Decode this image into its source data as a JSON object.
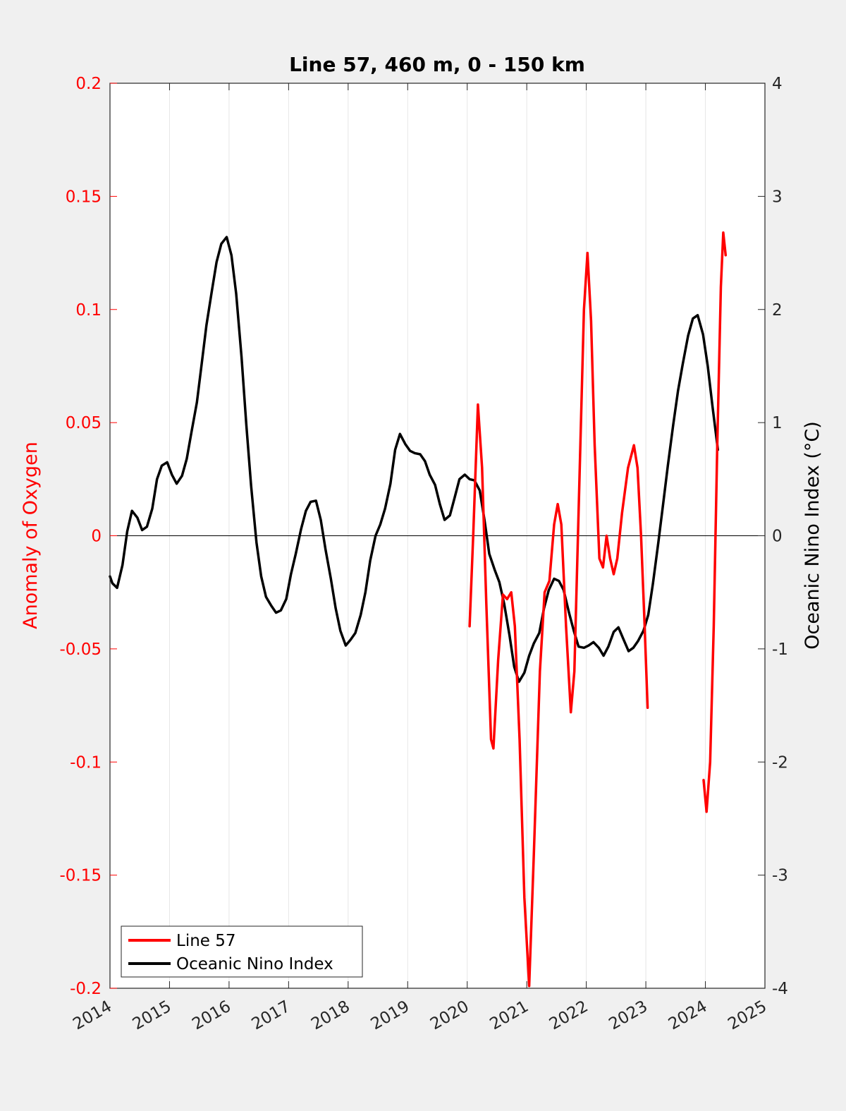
{
  "chart_data": {
    "type": "line",
    "title": "Line 57, 460 m, 0 - 150 km",
    "xlabel": "",
    "ylabel_left": "Anomaly of Oxygen",
    "ylabel_right": "Oceanic Nino Index (°C)",
    "xlim": [
      2014,
      2025
    ],
    "ylim_left": [
      -0.2,
      0.2
    ],
    "ylim_right": [
      -4,
      4
    ],
    "x_ticks": [
      "2014",
      "2015",
      "2016",
      "2017",
      "2018",
      "2019",
      "2020",
      "2021",
      "2022",
      "2023",
      "2024",
      "2025"
    ],
    "y_ticks_left": [
      "-0.2",
      "-0.15",
      "-0.1",
      "-0.05",
      "0",
      "0.05",
      "0.1",
      "0.15",
      "0.2"
    ],
    "y_ticks_right": [
      "-4",
      "-3",
      "-2",
      "-1",
      "0",
      "1",
      "2",
      "3",
      "4"
    ],
    "grid": "vertical",
    "zero_line": true,
    "legend_position": "bottom-left",
    "colors": {
      "line57": "#ff0000",
      "oni": "#000000",
      "left_axis": "#ff0000",
      "right_axis": "#000000"
    },
    "series": [
      {
        "name": "Line 57",
        "axis": "left",
        "color": "#ff0000",
        "segments": [
          [
            [
              2020.04,
              -0.04
            ],
            [
              2020.1,
              0.0
            ],
            [
              2020.18,
              0.058
            ],
            [
              2020.25,
              0.03
            ],
            [
              2020.32,
              -0.03
            ],
            [
              2020.4,
              -0.09
            ],
            [
              2020.44,
              -0.094
            ],
            [
              2020.52,
              -0.055
            ],
            [
              2020.6,
              -0.026
            ],
            [
              2020.67,
              -0.028
            ],
            [
              2020.74,
              -0.025
            ],
            [
              2020.8,
              -0.04
            ],
            [
              2020.88,
              -0.09
            ],
            [
              2020.96,
              -0.16
            ],
            [
              2021.04,
              -0.199
            ],
            [
              2021.12,
              -0.14
            ],
            [
              2021.22,
              -0.06
            ],
            [
              2021.3,
              -0.025
            ],
            [
              2021.38,
              -0.02
            ],
            [
              2021.46,
              0.005
            ],
            [
              2021.52,
              0.014
            ],
            [
              2021.58,
              0.005
            ],
            [
              2021.66,
              -0.04
            ],
            [
              2021.74,
              -0.078
            ],
            [
              2021.8,
              -0.06
            ],
            [
              2021.88,
              0.02
            ],
            [
              2021.96,
              0.1
            ],
            [
              2022.02,
              0.125
            ],
            [
              2022.08,
              0.095
            ],
            [
              2022.14,
              0.04
            ],
            [
              2022.22,
              -0.01
            ],
            [
              2022.28,
              -0.014
            ],
            [
              2022.34,
              0.0
            ],
            [
              2022.4,
              -0.01
            ],
            [
              2022.46,
              -0.017
            ],
            [
              2022.52,
              -0.01
            ],
            [
              2022.6,
              0.01
            ],
            [
              2022.7,
              0.03
            ],
            [
              2022.8,
              0.04
            ],
            [
              2022.86,
              0.03
            ],
            [
              2022.92,
              0.0
            ],
            [
              2022.98,
              -0.04
            ],
            [
              2023.03,
              -0.076
            ]
          ],
          [
            [
              2023.97,
              -0.108
            ],
            [
              2024.02,
              -0.122
            ],
            [
              2024.08,
              -0.1
            ],
            [
              2024.14,
              -0.04
            ],
            [
              2024.2,
              0.04
            ],
            [
              2024.26,
              0.11
            ],
            [
              2024.3,
              0.134
            ],
            [
              2024.34,
              0.124
            ]
          ]
        ]
      },
      {
        "name": "Oceanic Nino Index",
        "axis": "right",
        "color": "#000000",
        "points": [
          [
            2014.0,
            -0.36
          ],
          [
            2014.04,
            -0.42
          ],
          [
            2014.12,
            -0.46
          ],
          [
            2014.21,
            -0.26
          ],
          [
            2014.29,
            0.04
          ],
          [
            2014.37,
            0.22
          ],
          [
            2014.46,
            0.16
          ],
          [
            2014.54,
            0.05
          ],
          [
            2014.62,
            0.08
          ],
          [
            2014.71,
            0.24
          ],
          [
            2014.79,
            0.5
          ],
          [
            2014.87,
            0.62
          ],
          [
            2014.96,
            0.65
          ],
          [
            2015.04,
            0.54
          ],
          [
            2015.12,
            0.46
          ],
          [
            2015.21,
            0.53
          ],
          [
            2015.29,
            0.68
          ],
          [
            2015.37,
            0.92
          ],
          [
            2015.46,
            1.18
          ],
          [
            2015.54,
            1.52
          ],
          [
            2015.62,
            1.86
          ],
          [
            2015.71,
            2.16
          ],
          [
            2015.79,
            2.42
          ],
          [
            2015.87,
            2.58
          ],
          [
            2015.96,
            2.64
          ],
          [
            2016.04,
            2.48
          ],
          [
            2016.12,
            2.14
          ],
          [
            2016.21,
            1.58
          ],
          [
            2016.29,
            0.98
          ],
          [
            2016.37,
            0.44
          ],
          [
            2016.46,
            -0.06
          ],
          [
            2016.54,
            -0.36
          ],
          [
            2016.62,
            -0.54
          ],
          [
            2016.71,
            -0.62
          ],
          [
            2016.79,
            -0.68
          ],
          [
            2016.87,
            -0.66
          ],
          [
            2016.96,
            -0.56
          ],
          [
            2017.04,
            -0.34
          ],
          [
            2017.12,
            -0.16
          ],
          [
            2017.21,
            0.06
          ],
          [
            2017.29,
            0.22
          ],
          [
            2017.37,
            0.3
          ],
          [
            2017.46,
            0.31
          ],
          [
            2017.54,
            0.14
          ],
          [
            2017.62,
            -0.12
          ],
          [
            2017.71,
            -0.38
          ],
          [
            2017.79,
            -0.64
          ],
          [
            2017.87,
            -0.84
          ],
          [
            2017.96,
            -0.97
          ],
          [
            2018.04,
            -0.92
          ],
          [
            2018.12,
            -0.86
          ],
          [
            2018.21,
            -0.7
          ],
          [
            2018.29,
            -0.5
          ],
          [
            2018.37,
            -0.22
          ],
          [
            2018.46,
            0.0
          ],
          [
            2018.54,
            0.1
          ],
          [
            2018.62,
            0.24
          ],
          [
            2018.71,
            0.46
          ],
          [
            2018.79,
            0.76
          ],
          [
            2018.87,
            0.9
          ],
          [
            2018.96,
            0.81
          ],
          [
            2019.04,
            0.75
          ],
          [
            2019.12,
            0.73
          ],
          [
            2019.21,
            0.72
          ],
          [
            2019.29,
            0.66
          ],
          [
            2019.37,
            0.54
          ],
          [
            2019.46,
            0.45
          ],
          [
            2019.54,
            0.28
          ],
          [
            2019.62,
            0.14
          ],
          [
            2019.71,
            0.18
          ],
          [
            2019.79,
            0.34
          ],
          [
            2019.87,
            0.5
          ],
          [
            2019.96,
            0.54
          ],
          [
            2020.04,
            0.5
          ],
          [
            2020.12,
            0.49
          ],
          [
            2020.21,
            0.4
          ],
          [
            2020.29,
            0.14
          ],
          [
            2020.37,
            -0.16
          ],
          [
            2020.46,
            -0.3
          ],
          [
            2020.54,
            -0.41
          ],
          [
            2020.62,
            -0.6
          ],
          [
            2020.71,
            -0.88
          ],
          [
            2020.79,
            -1.16
          ],
          [
            2020.87,
            -1.29
          ],
          [
            2020.96,
            -1.21
          ],
          [
            2021.04,
            -1.06
          ],
          [
            2021.12,
            -0.95
          ],
          [
            2021.21,
            -0.86
          ],
          [
            2021.29,
            -0.64
          ],
          [
            2021.37,
            -0.48
          ],
          [
            2021.46,
            -0.38
          ],
          [
            2021.54,
            -0.4
          ],
          [
            2021.62,
            -0.48
          ],
          [
            2021.71,
            -0.68
          ],
          [
            2021.79,
            -0.84
          ],
          [
            2021.87,
            -0.98
          ],
          [
            2021.96,
            -0.99
          ],
          [
            2022.04,
            -0.97
          ],
          [
            2022.12,
            -0.94
          ],
          [
            2022.21,
            -0.99
          ],
          [
            2022.29,
            -1.06
          ],
          [
            2022.37,
            -0.98
          ],
          [
            2022.46,
            -0.85
          ],
          [
            2022.54,
            -0.81
          ],
          [
            2022.62,
            -0.91
          ],
          [
            2022.71,
            -1.02
          ],
          [
            2022.79,
            -0.99
          ],
          [
            2022.87,
            -0.93
          ],
          [
            2022.96,
            -0.84
          ],
          [
            2023.04,
            -0.7
          ],
          [
            2023.12,
            -0.42
          ],
          [
            2023.21,
            -0.06
          ],
          [
            2023.29,
            0.28
          ],
          [
            2023.37,
            0.62
          ],
          [
            2023.46,
            0.98
          ],
          [
            2023.54,
            1.28
          ],
          [
            2023.62,
            1.52
          ],
          [
            2023.71,
            1.77
          ],
          [
            2023.79,
            1.92
          ],
          [
            2023.87,
            1.95
          ],
          [
            2023.96,
            1.78
          ],
          [
            2024.04,
            1.5
          ],
          [
            2024.12,
            1.14
          ],
          [
            2024.21,
            0.76
          ]
        ]
      }
    ]
  }
}
